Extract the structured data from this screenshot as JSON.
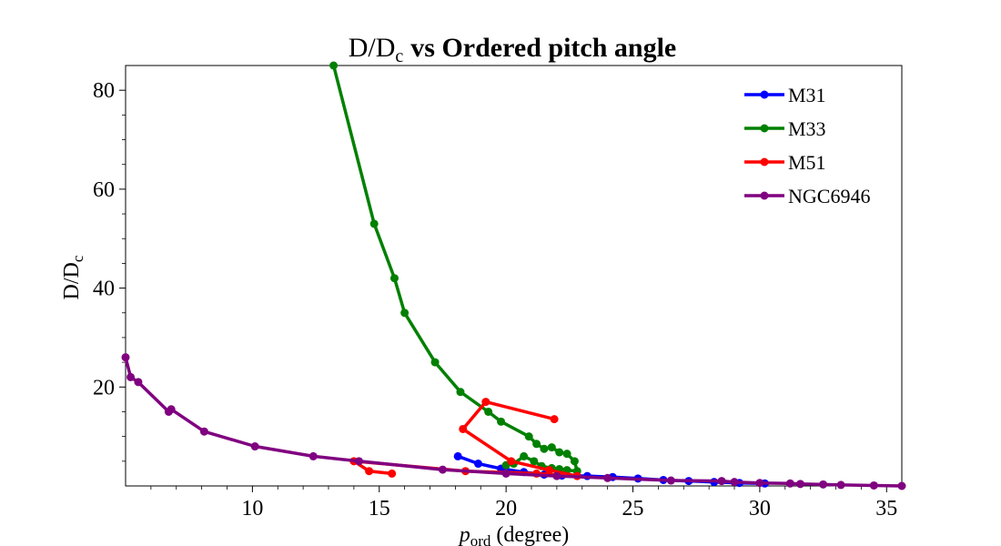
{
  "chart_data": {
    "type": "line",
    "title": "D/Dc vs Ordered pitch angle",
    "title_parts": {
      "lead": "D/D",
      "lead_sub": "c",
      "rest": "vs Ordered pitch angle"
    },
    "xlabel": "p_ord (degree)",
    "xlabel_parts": {
      "p": "p",
      "sub": "ord",
      "rest": "(degree)"
    },
    "ylabel": "D/Dc",
    "ylabel_parts": {
      "main": "D/D",
      "sub": "c"
    },
    "xlim": [
      5,
      35.6
    ],
    "ylim": [
      0,
      85
    ],
    "x_ticks": [
      10,
      15,
      20,
      25,
      30,
      35
    ],
    "y_ticks": [
      20,
      40,
      60,
      80
    ],
    "grid": false,
    "legend_position": "top-right",
    "series": [
      {
        "name": "M31",
        "color": "#0000ff",
        "x": [
          18.1,
          18.9,
          19.8,
          20.7,
          21.5,
          22.2,
          23.2,
          24.2,
          25.2,
          26.2,
          27.2,
          28.2,
          29.2,
          30.2
        ],
        "y": [
          6.0,
          4.5,
          3.5,
          2.8,
          2.3,
          2.1,
          2.0,
          1.8,
          1.5,
          1.2,
          1.0,
          0.8,
          0.6,
          0.5
        ]
      },
      {
        "name": "M33",
        "color": "#008000",
        "x": [
          13.2,
          14.8,
          15.6,
          16.0,
          17.2,
          18.2,
          19.3,
          19.8,
          20.9,
          21.2,
          21.5,
          21.8,
          22.1,
          22.4,
          22.7,
          22.8,
          22.4,
          22.1,
          21.8,
          21.4,
          21.1,
          20.7,
          20.3,
          20.0
        ],
        "y": [
          85,
          53,
          42,
          35,
          25,
          19,
          15,
          13,
          10,
          8.5,
          7.5,
          7.8,
          6.8,
          6.5,
          5.0,
          3.0,
          3.2,
          3.4,
          3.6,
          4.0,
          5.0,
          6.0,
          4.5,
          4.2
        ]
      },
      {
        "name": "M51",
        "color": "#ff0000",
        "x": [
          21.9,
          19.2,
          18.3,
          20.2,
          21.7,
          22.8,
          21.2,
          18.4,
          14.0,
          14.6,
          15.5
        ],
        "y": [
          13.5,
          17.0,
          11.5,
          5.0,
          3.2,
          2.0,
          2.5,
          3.0,
          5.0,
          3.0,
          2.5
        ]
      },
      {
        "name": "NGC6946",
        "color": "#800080",
        "x": [
          5.0,
          5.2,
          5.5,
          6.7,
          6.8,
          8.1,
          10.1,
          12.4,
          14.2,
          17.5,
          20.0,
          22.0,
          24.0,
          26.5,
          28.5,
          29.0,
          30.0,
          31.2,
          31.6,
          32.5,
          33.2,
          34.5,
          35.6
        ],
        "y": [
          26.0,
          22.0,
          21.0,
          15.0,
          15.5,
          11.0,
          8.0,
          6.0,
          5.0,
          3.3,
          2.5,
          2.0,
          1.6,
          1.1,
          1.0,
          0.8,
          0.6,
          0.5,
          0.4,
          0.3,
          0.2,
          0.1,
          0.0
        ]
      }
    ]
  }
}
